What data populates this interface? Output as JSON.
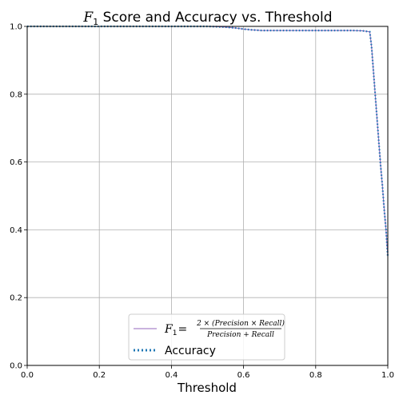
{
  "chart_data": {
    "type": "line",
    "title": "F1 Score and Accuracy vs. Threshold",
    "title_parts": {
      "f": "F",
      "sub": "1",
      "rest": " Score and Accuracy vs. Threshold"
    },
    "xlabel": "Threshold",
    "ylabel": "",
    "xlim": [
      0,
      1
    ],
    "ylim": [
      0,
      1
    ],
    "grid": true,
    "legend_position": "bottom-center",
    "x_ticks": [
      "0.0",
      "0.2",
      "0.4",
      "0.6",
      "0.8",
      "1.0"
    ],
    "y_ticks": [
      "0.0",
      "0.2",
      "0.4",
      "0.6",
      "0.8",
      "1.0"
    ],
    "legend": {
      "f1_lhs_f": "F",
      "f1_lhs_sub": "1",
      "f1_eq": "=",
      "f1_numerator": "2 × (Precision × Recall)",
      "f1_denominator": "Precision + Recall",
      "accuracy_label": "Accuracy"
    },
    "series": [
      {
        "key": "f1",
        "color": "#9467bd",
        "style": "solid",
        "x": [
          0.0,
          0.1,
          0.2,
          0.3,
          0.4,
          0.5,
          0.55,
          0.58,
          0.6,
          0.62,
          0.65,
          0.7,
          0.75,
          0.8,
          0.85,
          0.9,
          0.93,
          0.95,
          0.955,
          0.96,
          0.965,
          0.97,
          0.975,
          0.98,
          0.985,
          0.99,
          0.995,
          1.0
        ],
        "y": [
          1.0,
          1.0,
          1.0,
          1.0,
          1.0,
          1.0,
          0.998,
          0.995,
          0.992,
          0.99,
          0.988,
          0.988,
          0.988,
          0.988,
          0.988,
          0.988,
          0.987,
          0.984,
          0.94,
          0.87,
          0.8,
          0.73,
          0.66,
          0.59,
          0.53,
          0.46,
          0.4,
          0.32
        ]
      },
      {
        "key": "accuracy",
        "color": "#1f77b4",
        "style": "dotted",
        "x": [
          0.0,
          0.1,
          0.2,
          0.3,
          0.4,
          0.5,
          0.55,
          0.58,
          0.6,
          0.62,
          0.65,
          0.7,
          0.75,
          0.8,
          0.85,
          0.9,
          0.93,
          0.95,
          0.955,
          0.96,
          0.965,
          0.97,
          0.975,
          0.98,
          0.985,
          0.99,
          0.995,
          1.0
        ],
        "y": [
          1.0,
          1.0,
          1.0,
          1.0,
          1.0,
          1.0,
          0.998,
          0.995,
          0.992,
          0.99,
          0.988,
          0.988,
          0.988,
          0.988,
          0.988,
          0.988,
          0.987,
          0.984,
          0.94,
          0.87,
          0.8,
          0.73,
          0.66,
          0.59,
          0.53,
          0.46,
          0.4,
          0.32
        ]
      }
    ]
  }
}
